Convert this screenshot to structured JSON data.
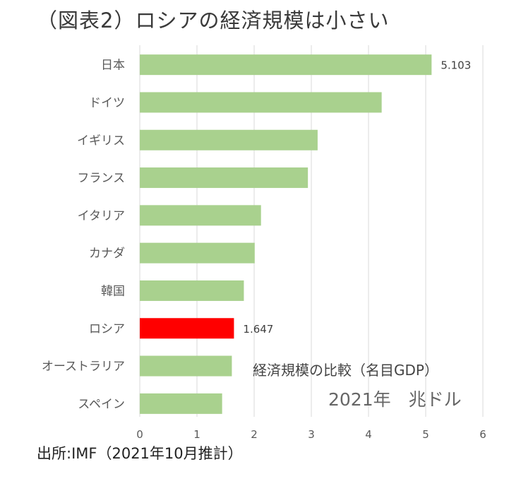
{
  "title": "（図表2）ロシアの経済規模は小さい",
  "source": "出所:IMF（2021年10月推計）",
  "chart_data": {
    "type": "bar",
    "orientation": "horizontal",
    "categories": [
      "日本",
      "ドイツ",
      "イギリス",
      "フランス",
      "イタリア",
      "カナダ",
      "韓国",
      "ロシア",
      "オーストラリア",
      "スペイン"
    ],
    "values": [
      5.103,
      4.23,
      3.11,
      2.94,
      2.12,
      2.01,
      1.82,
      1.647,
      1.61,
      1.44
    ],
    "data_labels": {
      "日本": "5.103",
      "ロシア": "1.647"
    },
    "highlight": "ロシア",
    "bar_color": "#a9d18e",
    "highlight_color": "#ff0000",
    "xlim": [
      0,
      6
    ],
    "xticks": [
      "0",
      "1",
      "2",
      "3",
      "4",
      "5",
      "6"
    ],
    "grid": true,
    "annotation_line1": "経済規模の比較（名目GDP）",
    "annotation_line2": "2021年　兆ドル"
  }
}
